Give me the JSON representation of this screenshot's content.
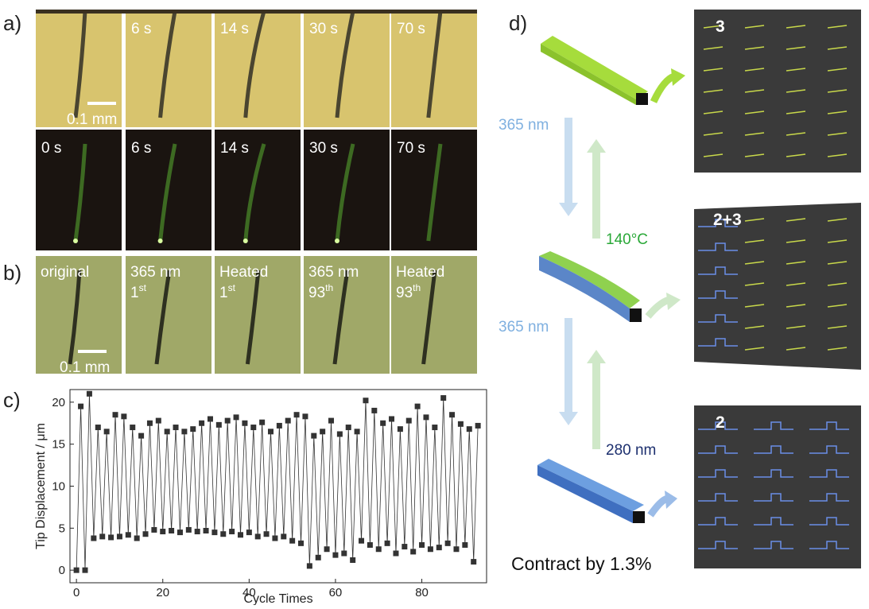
{
  "panels": {
    "a": {
      "label": "a)",
      "row1_times": [
        "6 s",
        "14 s",
        "30 s",
        "70 s"
      ],
      "scale_bar": "0.1 mm",
      "row2_times": [
        "0 s",
        "6 s",
        "14 s",
        "30 s",
        "70 s"
      ]
    },
    "b": {
      "label": "b)",
      "scale_bar": "0.1 mm",
      "images": [
        {
          "text": "original"
        },
        {
          "text": "365 nm",
          "cycle": "1",
          "suffix": "st"
        },
        {
          "text": "Heated",
          "cycle": "1",
          "suffix": "st"
        },
        {
          "text": "365 nm",
          "cycle": "93",
          "suffix": "th"
        },
        {
          "text": "Heated",
          "cycle": "93",
          "suffix": "th"
        }
      ]
    },
    "c": {
      "label": "c)"
    },
    "d": {
      "label": "d)",
      "arrow1_down": "365 nm",
      "arrow1_up": "140°C",
      "arrow2_down": "365 nm",
      "arrow2_up": "280 nm",
      "caption": "Contract by 1.3%",
      "state_labels": [
        "3",
        "2+3",
        "2"
      ]
    }
  },
  "chart_data": {
    "type": "line",
    "x_label": "Cycle Times",
    "y_label": "Tip Displacement / μm",
    "xlim": [
      -1.5,
      95
    ],
    "xticks": [
      0,
      20,
      40,
      60,
      80
    ],
    "ylim": [
      -1.5,
      21.5
    ],
    "yticks": [
      0,
      5,
      10,
      15,
      20
    ],
    "color": "#333333",
    "x": [
      0,
      1,
      2,
      3,
      4,
      5,
      6,
      7,
      8,
      9,
      10,
      11,
      12,
      13,
      14,
      15,
      16,
      17,
      18,
      19,
      20,
      21,
      22,
      23,
      24,
      25,
      26,
      27,
      28,
      29,
      30,
      31,
      32,
      33,
      34,
      35,
      36,
      37,
      38,
      39,
      40,
      41,
      42,
      43,
      44,
      45,
      46,
      47,
      48,
      49,
      50,
      51,
      52,
      53,
      54,
      55,
      56,
      57,
      58,
      59,
      60,
      61,
      62,
      63,
      64,
      65,
      66,
      67,
      68,
      69,
      70,
      71,
      72,
      73,
      74,
      75,
      76,
      77,
      78,
      79,
      80,
      81,
      82,
      83,
      84,
      85,
      86,
      87,
      88,
      89,
      90,
      91,
      92,
      93
    ],
    "values": [
      0,
      19.5,
      0,
      21,
      3.8,
      17,
      4,
      16.5,
      3.9,
      18.5,
      4,
      18.3,
      4.2,
      17,
      3.8,
      16,
      4.3,
      17.5,
      4.8,
      17.8,
      4.6,
      16.5,
      4.7,
      17,
      4.5,
      16.5,
      4.8,
      16.8,
      4.6,
      17.5,
      4.7,
      18,
      4.5,
      17.3,
      4.3,
      17.8,
      4.6,
      18.2,
      4.2,
      17.5,
      4.5,
      17,
      4,
      17.6,
      4.3,
      16.5,
      3.8,
      17.2,
      4,
      17.8,
      3.5,
      18.5,
      3.2,
      18.3,
      0.5,
      16,
      1.5,
      16.5,
      2.5,
      17.8,
      1.8,
      16.2,
      2,
      17,
      1.2,
      16.5,
      3.5,
      20.2,
      3,
      19,
      2.5,
      17.5,
      3.2,
      18,
      2,
      16.8,
      2.8,
      17.8,
      2.2,
      19.5,
      3,
      18.2,
      2.5,
      17,
      2.7,
      20.5,
      3.2,
      18.5,
      2.5,
      17.4,
      3,
      16.8,
      1,
      17.2
    ]
  }
}
